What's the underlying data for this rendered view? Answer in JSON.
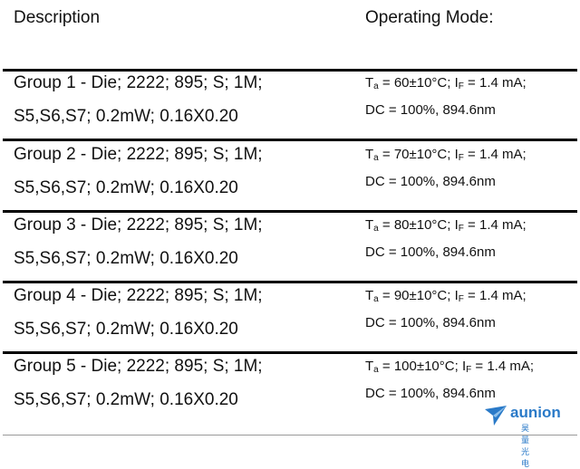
{
  "header": {
    "description": "Description",
    "operating_mode": "Operating Mode:"
  },
  "rows": [
    {
      "description": [
        "Group 1 - Die; 2222; 895; S; 1M;",
        "S5,S6,S7; 0.2mW; 0.16X0.20"
      ],
      "mode": {
        "t_symbol": "T",
        "t_sub": "a",
        "t_text": " = 60±10°C; ",
        "i_symbol": "I",
        "i_sub": "F",
        "i_text": " = 1.4 mA;",
        "line2": "DC = 100%, 894.6nm"
      }
    },
    {
      "description": [
        "Group 2 - Die; 2222; 895; S; 1M;",
        "S5,S6,S7; 0.2mW; 0.16X0.20"
      ],
      "mode": {
        "t_symbol": "T",
        "t_sub": "a",
        "t_text": " = 70±10°C; ",
        "i_symbol": "I",
        "i_sub": "F",
        "i_text": " = 1.4 mA;",
        "line2": "DC = 100%, 894.6nm"
      }
    },
    {
      "description": [
        "Group 3 - Die; 2222; 895; S; 1M;",
        "S5,S6,S7; 0.2mW; 0.16X0.20"
      ],
      "mode": {
        "t_symbol": "T",
        "t_sub": "a",
        "t_text": " = 80±10°C; ",
        "i_symbol": "I",
        "i_sub": "F",
        "i_text": " = 1.4 mA;",
        "line2": "DC = 100%, 894.6nm"
      }
    },
    {
      "description": [
        "Group 4 - Die; 2222; 895; S; 1M;",
        "S5,S6,S7; 0.2mW; 0.16X0.20"
      ],
      "mode": {
        "t_symbol": "T",
        "t_sub": "a",
        "t_text": " = 90±10°C; ",
        "i_symbol": "I",
        "i_sub": "F",
        "i_text": " = 1.4 mA;",
        "line2": "DC = 100%, 894.6nm"
      }
    },
    {
      "description": [
        "Group 5 - Die; 2222; 895; S; 1M;",
        "S5,S6,S7; 0.2mW; 0.16X0.20"
      ],
      "mode": {
        "t_symbol": "T",
        "t_sub": "a",
        "t_text": " = 100±10°C; ",
        "i_symbol": "I",
        "i_sub": "F",
        "i_text": " = 1.4 mA;",
        "line2": "DC = 100%, 894.6nm"
      }
    }
  ],
  "logo": {
    "name": "aunion",
    "subtitle": "昊量光电"
  }
}
